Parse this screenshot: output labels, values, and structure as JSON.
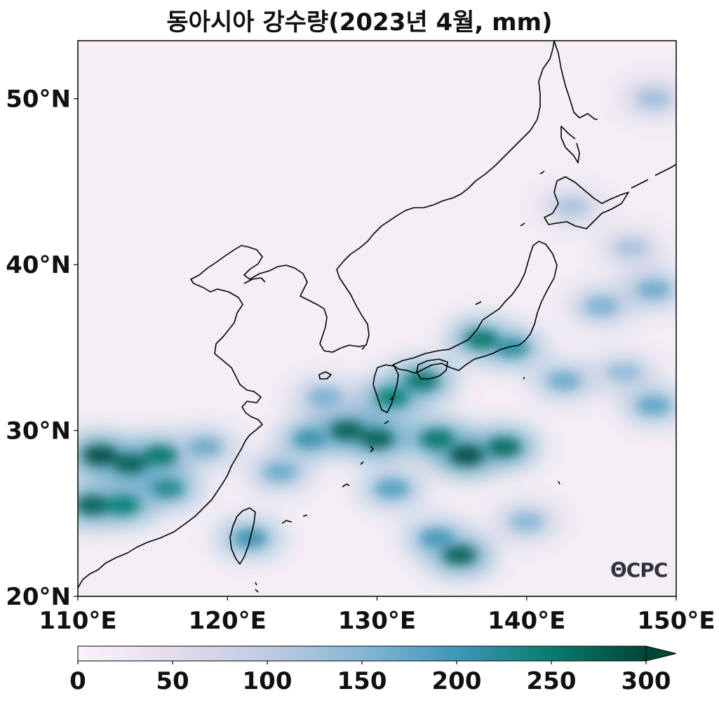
{
  "title": "동아시아 강수량(2023년 4월, mm)",
  "logo_text": "ΘCPC",
  "map": {
    "lon_range": [
      110,
      150
    ],
    "lat_range": [
      20,
      53.5
    ],
    "lat_ticks": [
      {
        "value": 20,
        "label": "20°N"
      },
      {
        "value": 30,
        "label": "30°N"
      },
      {
        "value": 40,
        "label": "40°N"
      },
      {
        "value": 50,
        "label": "50°N"
      }
    ],
    "lon_ticks": [
      {
        "value": 110,
        "label": "110°E"
      },
      {
        "value": 120,
        "label": "120°E"
      },
      {
        "value": 130,
        "label": "130°E"
      },
      {
        "value": 140,
        "label": "140°E"
      },
      {
        "value": 150,
        "label": "150°E"
      }
    ],
    "background_color": "#f5eef5",
    "precip_blobs": [
      {
        "lon": 111.5,
        "lat": 28.5,
        "value": 300
      },
      {
        "lon": 113.5,
        "lat": 28.0,
        "value": 280
      },
      {
        "lon": 115.5,
        "lat": 28.5,
        "value": 260
      },
      {
        "lon": 111.0,
        "lat": 25.5,
        "value": 280
      },
      {
        "lon": 113.0,
        "lat": 25.5,
        "value": 250
      },
      {
        "lon": 116.0,
        "lat": 26.5,
        "value": 230
      },
      {
        "lon": 118.5,
        "lat": 29.0,
        "value": 170
      },
      {
        "lon": 121.5,
        "lat": 23.5,
        "value": 210
      },
      {
        "lon": 125.5,
        "lat": 29.5,
        "value": 210
      },
      {
        "lon": 128.0,
        "lat": 30.0,
        "value": 280
      },
      {
        "lon": 130.0,
        "lat": 29.5,
        "value": 280
      },
      {
        "lon": 131.0,
        "lat": 32.0,
        "value": 250
      },
      {
        "lon": 133.0,
        "lat": 33.0,
        "value": 260
      },
      {
        "lon": 134.0,
        "lat": 29.5,
        "value": 260
      },
      {
        "lon": 136.0,
        "lat": 28.5,
        "value": 300
      },
      {
        "lon": 138.5,
        "lat": 29.0,
        "value": 270
      },
      {
        "lon": 137.0,
        "lat": 35.5,
        "value": 260
      },
      {
        "lon": 139.0,
        "lat": 35.0,
        "value": 220
      },
      {
        "lon": 142.5,
        "lat": 33.0,
        "value": 170
      },
      {
        "lon": 146.5,
        "lat": 33.5,
        "value": 140
      },
      {
        "lon": 148.5,
        "lat": 31.5,
        "value": 180
      },
      {
        "lon": 145.0,
        "lat": 37.5,
        "value": 160
      },
      {
        "lon": 148.5,
        "lat": 38.5,
        "value": 170
      },
      {
        "lon": 147.0,
        "lat": 41.0,
        "value": 120
      },
      {
        "lon": 143.0,
        "lat": 43.5,
        "value": 120
      },
      {
        "lon": 148.5,
        "lat": 50.0,
        "value": 130
      },
      {
        "lon": 135.5,
        "lat": 22.5,
        "value": 280
      },
      {
        "lon": 134.0,
        "lat": 23.5,
        "value": 200
      },
      {
        "lon": 131.0,
        "lat": 26.5,
        "value": 190
      },
      {
        "lon": 123.5,
        "lat": 27.5,
        "value": 170
      },
      {
        "lon": 140.0,
        "lat": 24.5,
        "value": 150
      },
      {
        "lon": 126.5,
        "lat": 32.0,
        "value": 160
      }
    ]
  },
  "colorbar": {
    "min": 0,
    "max": 300,
    "ticks": [
      {
        "value": 0,
        "label": "0"
      },
      {
        "value": 50,
        "label": "50"
      },
      {
        "value": 100,
        "label": "100"
      },
      {
        "value": 150,
        "label": "150"
      },
      {
        "value": 200,
        "label": "200"
      },
      {
        "value": 250,
        "label": "250"
      },
      {
        "value": 300,
        "label": "300"
      }
    ],
    "colors": [
      "#fbf3fa",
      "#e4dcec",
      "#bfcbe2",
      "#86b7d6",
      "#3f96b9",
      "#067d6e",
      "#014636"
    ],
    "extend": "max"
  }
}
